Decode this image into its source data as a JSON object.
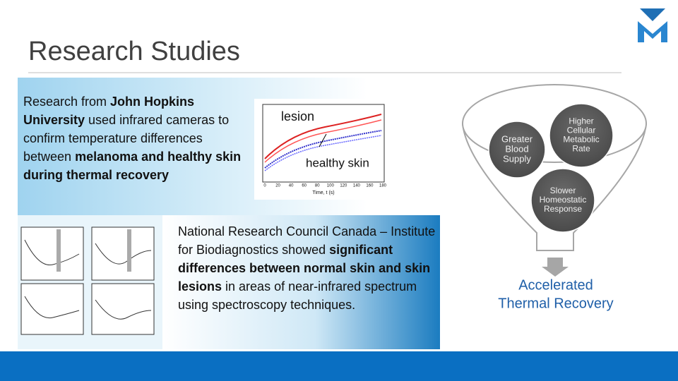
{
  "header": {
    "title": "Research Studies"
  },
  "studies": [
    {
      "segments": [
        {
          "text": "Research from ",
          "bold": false
        },
        {
          "text": "John Hopkins University",
          "bold": true
        },
        {
          "text": " used infrared cameras to confirm temperature differences between ",
          "bold": false
        },
        {
          "text": "melanoma and healthy skin during thermal recovery",
          "bold": true
        }
      ]
    },
    {
      "segments": [
        {
          "text": "National Research Council Canada – Institute for Biodiagnostics showed ",
          "bold": false
        },
        {
          "text": "significant differences between normal skin and skin lesions",
          "bold": true
        },
        {
          "text": " in areas of near-infrared spectrum using spectroscopy techniques.",
          "bold": false
        }
      ]
    }
  ],
  "figure": {
    "lesion_label": "lesion",
    "healthy_label": "healthy skin",
    "x_label": "Time, t (s)",
    "x_ticks": [
      "0",
      "20",
      "40",
      "60",
      "80",
      "100",
      "120",
      "140",
      "160",
      "180"
    ]
  },
  "funnel": {
    "causes": [
      {
        "lines": [
          "Greater",
          "Blood",
          "Supply"
        ]
      },
      {
        "lines": [
          "Higher",
          "Cellular",
          "Metabolic",
          "Rate"
        ]
      },
      {
        "lines": [
          "Slower",
          "Homeostatic",
          "Response"
        ]
      }
    ],
    "result": [
      "Accelerated",
      "Thermal Recovery"
    ]
  }
}
